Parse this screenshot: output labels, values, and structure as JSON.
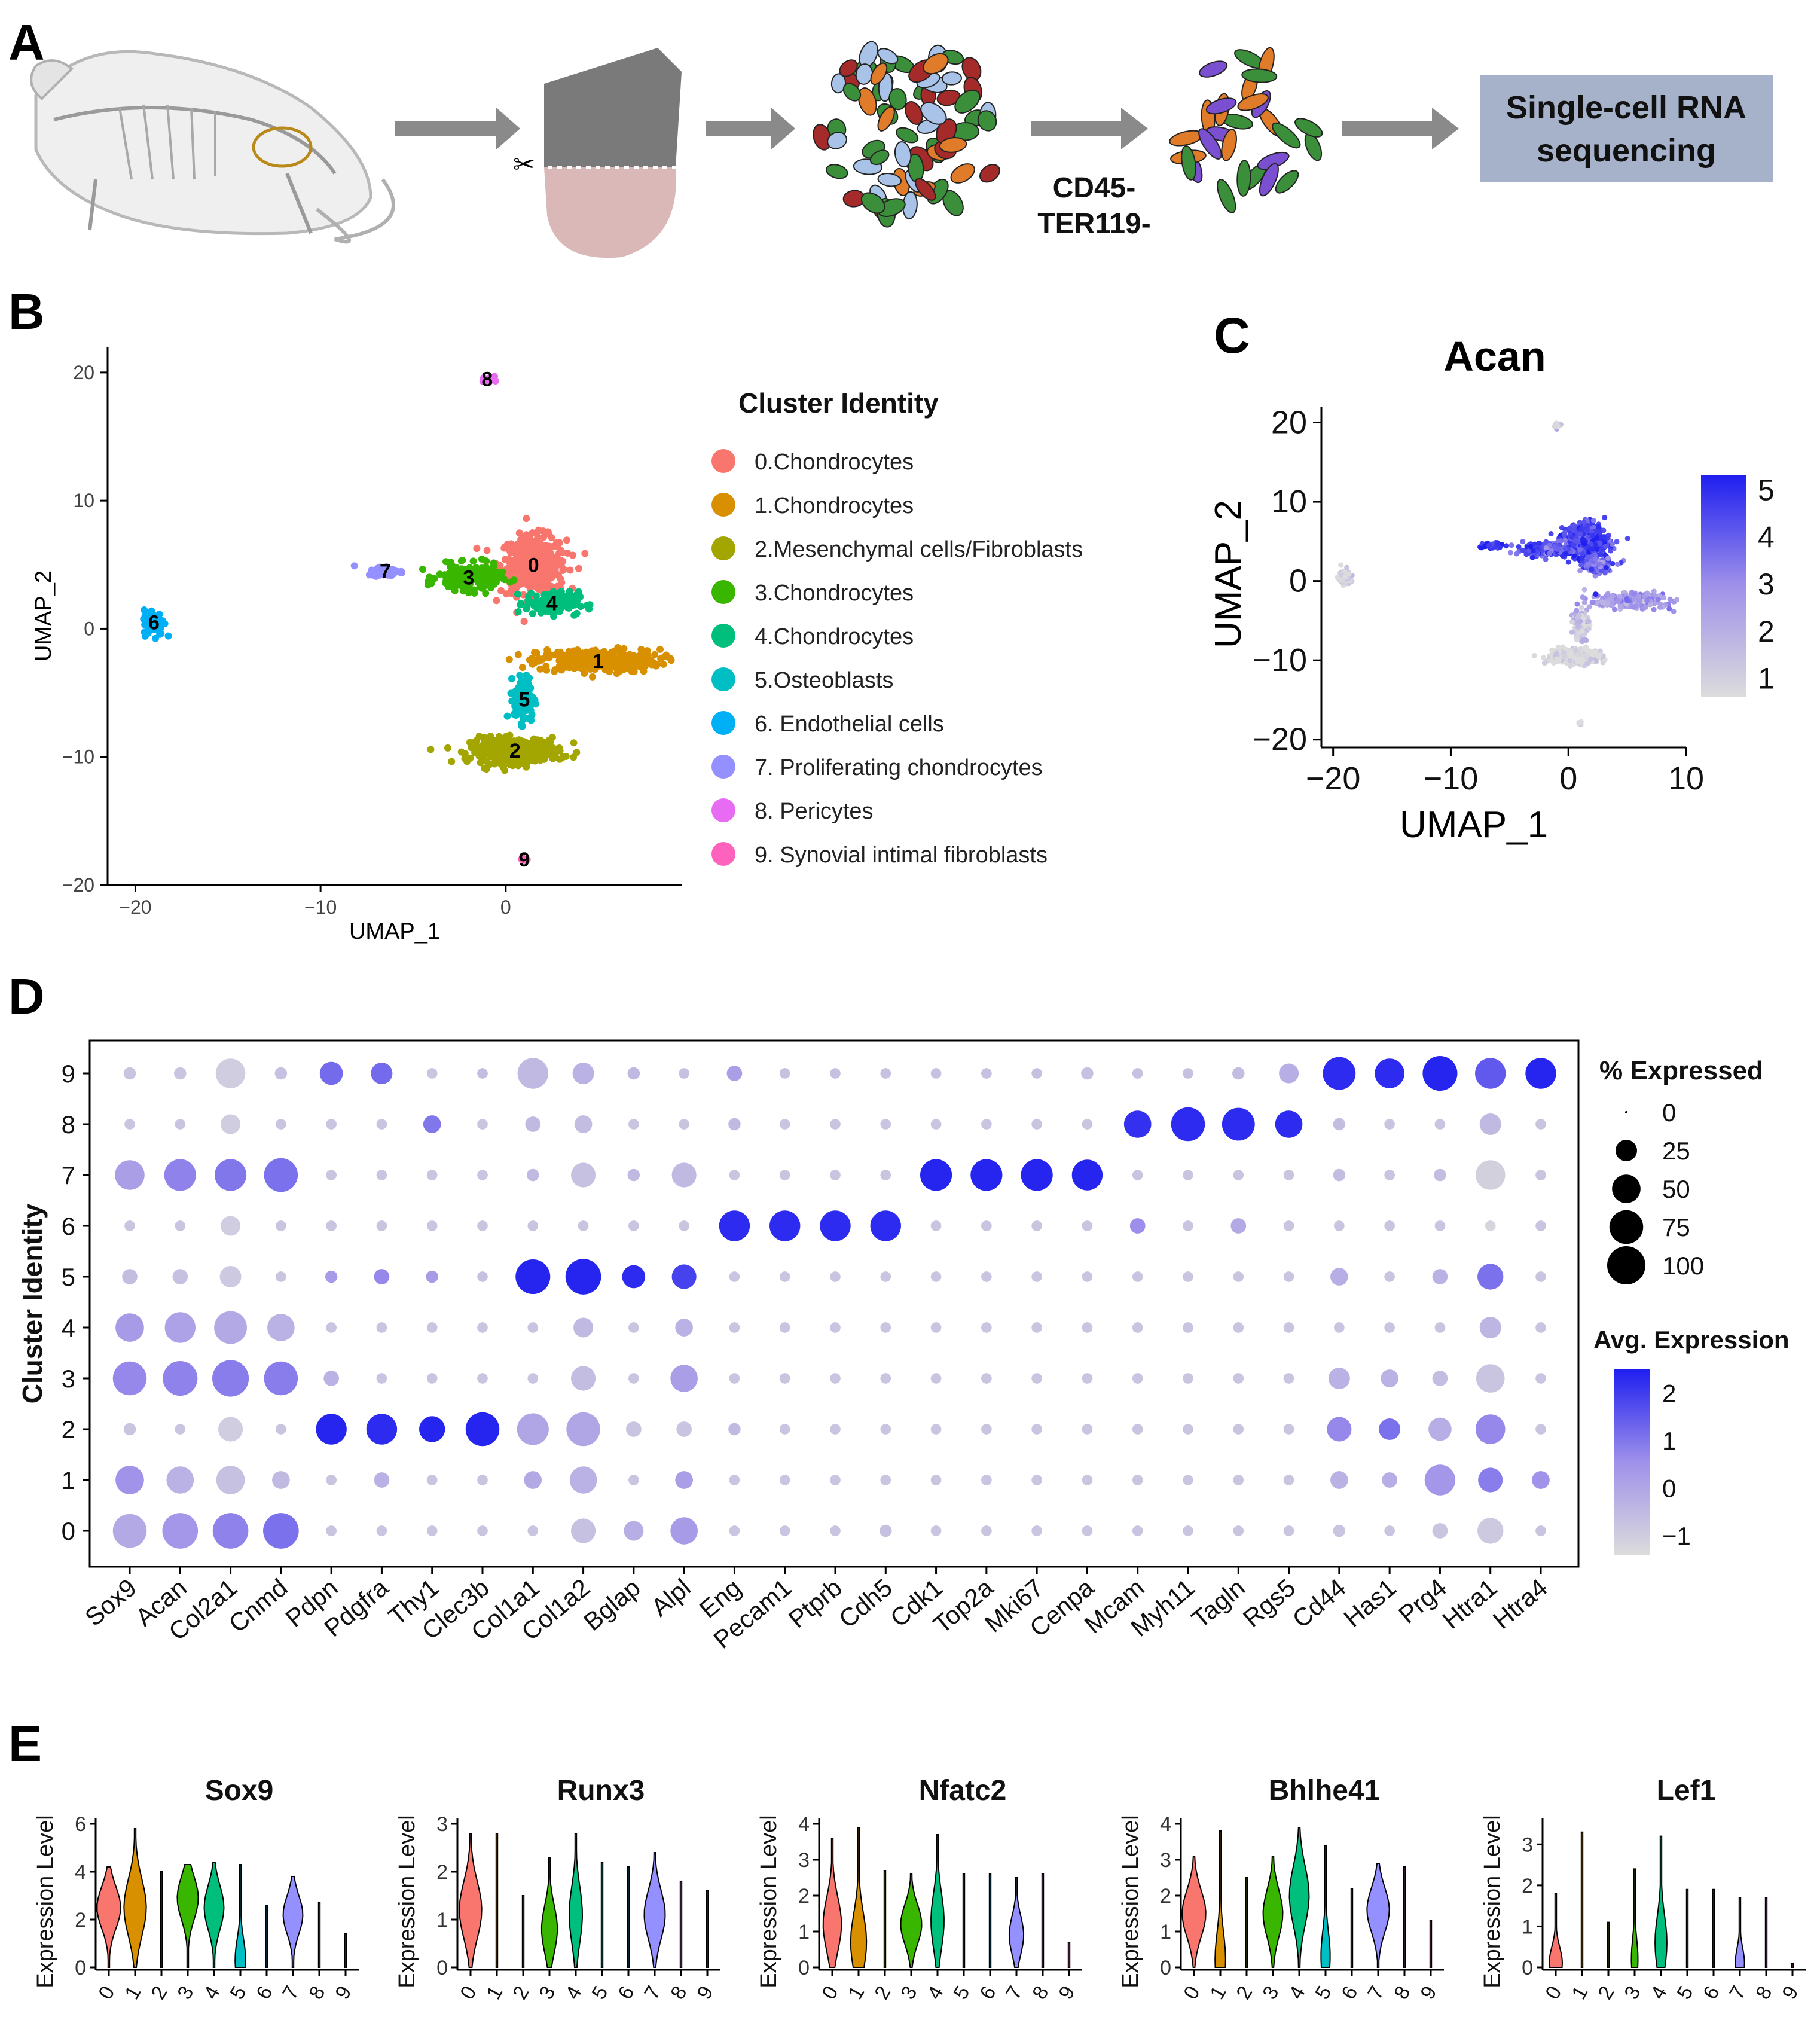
{
  "panels": {
    "a": "A",
    "b": "B",
    "c": "C",
    "d": "D",
    "e": "E"
  },
  "workflow": {
    "sort_label_1": "CD45-",
    "sort_label_2": "TER119-",
    "box_line_1": "Single-cell RNA",
    "box_line_2": "sequencing"
  },
  "umap": {
    "xlabel": "UMAP_1",
    "ylabel": "UMAP_2",
    "xticks": [
      "−20",
      "−10",
      "0"
    ],
    "yticks": [
      "20",
      "10",
      "0",
      "−10",
      "−20"
    ],
    "legend_title": "Cluster Identity",
    "clusters": [
      {
        "id": "0",
        "label": "0.Chondrocytes",
        "color": "#F8766D"
      },
      {
        "id": "1",
        "label": "1.Chondrocytes",
        "color": "#D89000"
      },
      {
        "id": "2",
        "label": "2.Mesenchymal cells/Fibroblasts",
        "color": "#A3A500"
      },
      {
        "id": "3",
        "label": "3.Chondrocytes",
        "color": "#39B600"
      },
      {
        "id": "4",
        "label": "4.Chondrocytes",
        "color": "#00BF7D"
      },
      {
        "id": "5",
        "label": "5.Osteoblasts",
        "color": "#00BFC4"
      },
      {
        "id": "6",
        "label": "6. Endothelial cells",
        "color": "#00B0F6"
      },
      {
        "id": "7",
        "label": "7. Proliferating chondrocytes",
        "color": "#9590FF"
      },
      {
        "id": "8",
        "label": "8. Pericytes",
        "color": "#E76BF3"
      },
      {
        "id": "9",
        "label": "9. Synovial intimal fibroblasts",
        "color": "#FF62BC"
      }
    ]
  },
  "acan": {
    "title": "Acan",
    "xlabel": "UMAP_1",
    "ylabel": "UMAP_2",
    "xticks": [
      "−20",
      "−10",
      "0",
      "10"
    ],
    "yticks": [
      "20",
      "10",
      "0",
      "−10",
      "−20"
    ],
    "colorbar_ticks": [
      "5",
      "4",
      "3",
      "2",
      "1"
    ]
  },
  "chart_data": [
    {
      "type": "scatter",
      "panel": "B",
      "xlabel": "UMAP_1",
      "ylabel": "UMAP_2",
      "xlim": [
        -21.5,
        9.5
      ],
      "ylim": [
        -20,
        22
      ],
      "cluster_centers": [
        {
          "cluster": "0",
          "x": 1.5,
          "y": 5
        },
        {
          "cluster": "1",
          "x": 5,
          "y": -2.5
        },
        {
          "cluster": "2",
          "x": 0.5,
          "y": -9.5
        },
        {
          "cluster": "3",
          "x": -2,
          "y": 4
        },
        {
          "cluster": "4",
          "x": 2.5,
          "y": 2
        },
        {
          "cluster": "5",
          "x": 1,
          "y": -5.5
        },
        {
          "cluster": "6",
          "x": -19,
          "y": 0.5
        },
        {
          "cluster": "7",
          "x": -6.5,
          "y": 4.5
        },
        {
          "cluster": "8",
          "x": -1,
          "y": 19.5
        },
        {
          "cluster": "9",
          "x": 1,
          "y": -18
        }
      ]
    },
    {
      "type": "scatter",
      "panel": "C",
      "title": "Acan",
      "xlabel": "UMAP_1",
      "ylabel": "UMAP_2",
      "xlim": [
        -21,
        10
      ],
      "ylim": [
        -21,
        22
      ],
      "colorbar_range": [
        0.6,
        5.3
      ]
    },
    {
      "type": "dotplot",
      "panel": "D",
      "ylabel": "Cluster Identity",
      "clusters": [
        "9",
        "8",
        "7",
        "6",
        "5",
        "4",
        "3",
        "2",
        "1",
        "0"
      ],
      "genes": [
        "Sox9",
        "Acan",
        "Col2a1",
        "Cnmd",
        "Pdpn",
        "Pdgfra",
        "Thy1",
        "Clec3b",
        "Col1a1",
        "Col1a2",
        "Bglap",
        "Alpl",
        "Eng",
        "Pecam1",
        "Ptprb",
        "Cdh5",
        "Cdk1",
        "Top2a",
        "Mki67",
        "Cenpa",
        "Mcam",
        "Myh11",
        "Tagln",
        "Rgs5",
        "Cd44",
        "Has1",
        "Prg4",
        "Htra1",
        "Htra4"
      ],
      "size_legend_title": "% Expressed",
      "size_legend": [
        "0",
        "25",
        "50",
        "75",
        "100"
      ],
      "color_legend_title": "Avg. Expression",
      "color_legend": [
        "2",
        "1",
        "0",
        "−1"
      ],
      "color_range": [
        -1.4,
        2.5
      ],
      "pct_expressed": [
        [
          5,
          5,
          55,
          5,
          30,
          25,
          3,
          3,
          60,
          25,
          5,
          3,
          10,
          3,
          3,
          3,
          3,
          3,
          3,
          5,
          3,
          3,
          5,
          20,
          70,
          55,
          80,
          60,
          60
        ],
        [
          3,
          3,
          20,
          3,
          3,
          3,
          15,
          3,
          10,
          15,
          3,
          3,
          5,
          3,
          3,
          3,
          3,
          3,
          3,
          3,
          45,
          75,
          70,
          45,
          5,
          3,
          3,
          25,
          3
        ],
        [
          55,
          65,
          65,
          75,
          3,
          3,
          3,
          3,
          5,
          35,
          5,
          35,
          3,
          3,
          3,
          3,
          65,
          65,
          65,
          60,
          3,
          3,
          3,
          3,
          5,
          3,
          5,
          55,
          3
        ],
        [
          3,
          3,
          20,
          3,
          3,
          3,
          3,
          3,
          3,
          3,
          3,
          3,
          60,
          60,
          60,
          60,
          3,
          3,
          3,
          3,
          10,
          3,
          10,
          3,
          3,
          3,
          3,
          3,
          3
        ],
        [
          10,
          10,
          25,
          3,
          5,
          10,
          5,
          3,
          80,
          85,
          30,
          35,
          3,
          3,
          3,
          3,
          3,
          3,
          3,
          3,
          3,
          3,
          3,
          3,
          15,
          3,
          10,
          40,
          3
        ],
        [
          50,
          60,
          70,
          45,
          3,
          3,
          3,
          3,
          3,
          20,
          3,
          15,
          3,
          3,
          3,
          3,
          3,
          3,
          3,
          3,
          3,
          3,
          3,
          3,
          3,
          3,
          3,
          25,
          3
        ],
        [
          75,
          80,
          90,
          75,
          10,
          3,
          3,
          3,
          3,
          35,
          3,
          45,
          3,
          3,
          3,
          3,
          3,
          3,
          3,
          3,
          3,
          3,
          3,
          3,
          25,
          15,
          10,
          50,
          3
        ],
        [
          5,
          3,
          35,
          3,
          60,
          60,
          40,
          75,
          65,
          75,
          10,
          10,
          5,
          3,
          3,
          3,
          3,
          3,
          3,
          3,
          3,
          3,
          3,
          3,
          35,
          25,
          30,
          55,
          3
        ],
        [
          50,
          45,
          50,
          15,
          3,
          10,
          3,
          3,
          15,
          45,
          3,
          15,
          3,
          3,
          3,
          3,
          3,
          3,
          3,
          3,
          3,
          3,
          3,
          3,
          15,
          10,
          60,
          35,
          15
        ],
        [
          75,
          85,
          85,
          85,
          3,
          3,
          3,
          3,
          3,
          35,
          20,
          45,
          3,
          3,
          3,
          5,
          3,
          3,
          3,
          3,
          3,
          3,
          3,
          3,
          5,
          3,
          10,
          40,
          3
        ]
      ],
      "avg_expression": [
        [
          -0.8,
          -0.8,
          -1,
          -0.7,
          1.2,
          1.2,
          -0.8,
          -0.6,
          -0.5,
          -0.3,
          -0.5,
          -0.7,
          0.2,
          -0.7,
          -0.7,
          -0.7,
          -0.7,
          -0.7,
          -0.7,
          -0.7,
          -0.7,
          -0.7,
          -0.6,
          -0.2,
          2.3,
          2.3,
          2.4,
          1.5,
          2.4
        ],
        [
          -0.8,
          -0.8,
          -1,
          -0.8,
          -0.8,
          -0.8,
          1,
          -0.8,
          -0.5,
          -0.6,
          -0.8,
          -0.8,
          -0.5,
          -0.8,
          -0.8,
          -0.8,
          -0.8,
          -0.8,
          -0.8,
          -0.8,
          2.2,
          2.3,
          2.3,
          2.3,
          -0.6,
          -0.8,
          -0.8,
          -0.5,
          -0.8
        ],
        [
          0.2,
          0.8,
          1,
          1.1,
          -0.8,
          -0.8,
          -0.8,
          -0.8,
          -0.5,
          -0.7,
          -0.5,
          -0.5,
          -0.8,
          -0.8,
          -0.8,
          -0.8,
          2.4,
          2.4,
          2.4,
          2.4,
          -0.8,
          -0.8,
          -0.8,
          -0.8,
          -0.6,
          -0.8,
          -0.6,
          -1.1,
          -0.8
        ],
        [
          -0.8,
          -0.8,
          -1,
          -0.8,
          -0.8,
          -0.8,
          -0.8,
          -0.8,
          -0.8,
          -0.8,
          -0.8,
          -0.8,
          2.3,
          2.3,
          2.3,
          2.3,
          -0.8,
          -0.8,
          -0.8,
          -0.8,
          0.6,
          -0.8,
          -0.1,
          -0.8,
          -0.8,
          -0.8,
          -0.8,
          -1.2,
          -0.8
        ],
        [
          -0.6,
          -0.7,
          -0.9,
          -0.8,
          0.3,
          0.7,
          0.3,
          -0.7,
          2.4,
          2.4,
          2.3,
          1.9,
          -0.8,
          -0.8,
          -0.8,
          -0.8,
          -0.8,
          -0.8,
          -0.8,
          -0.8,
          -0.8,
          -0.8,
          -0.8,
          -0.8,
          -0.2,
          -0.8,
          -0.3,
          1.1,
          -0.8
        ],
        [
          0.3,
          0.1,
          -0.1,
          -0.3,
          -0.8,
          -0.8,
          -0.8,
          -0.8,
          -0.8,
          -0.5,
          -0.8,
          -0.3,
          -0.8,
          -0.8,
          -0.8,
          -0.8,
          -0.8,
          -0.8,
          -0.8,
          -0.8,
          -0.8,
          -0.8,
          -0.8,
          -0.8,
          -0.8,
          -0.8,
          -0.8,
          -0.4,
          -0.8
        ],
        [
          0.7,
          0.8,
          0.9,
          0.9,
          -0.3,
          -0.8,
          -0.8,
          -0.8,
          -0.8,
          -0.6,
          -0.8,
          0.2,
          -0.8,
          -0.8,
          -0.8,
          -0.8,
          -0.8,
          -0.8,
          -0.8,
          -0.8,
          -0.8,
          -0.8,
          -0.8,
          -0.8,
          -0.3,
          -0.3,
          -0.6,
          -0.8,
          -0.8
        ],
        [
          -0.8,
          -0.8,
          -1,
          -0.8,
          2.4,
          2.3,
          2.4,
          2.4,
          0,
          0,
          -0.8,
          -0.8,
          -0.5,
          -0.8,
          -0.8,
          -0.8,
          -0.8,
          -0.8,
          -0.8,
          -0.8,
          -0.8,
          -0.8,
          -0.8,
          -0.8,
          0.7,
          1.1,
          -0.2,
          0.7,
          -0.8
        ],
        [
          0.5,
          -0.3,
          -0.7,
          -0.5,
          -0.8,
          -0.3,
          -0.8,
          -0.8,
          -0.1,
          -0.3,
          -0.8,
          0.2,
          -0.8,
          -0.8,
          -0.8,
          -0.8,
          -0.8,
          -0.8,
          -0.8,
          -0.8,
          -0.8,
          -0.8,
          -0.8,
          -0.8,
          -0.3,
          -0.2,
          0.4,
          0.9,
          0.5
        ],
        [
          -0.1,
          0.4,
          0.8,
          1.1,
          -0.8,
          -0.8,
          -0.8,
          -0.8,
          -0.8,
          -0.7,
          -0.2,
          0.3,
          -0.8,
          -0.8,
          -0.8,
          -0.7,
          -0.8,
          -0.8,
          -0.8,
          -0.8,
          -0.8,
          -0.8,
          -0.8,
          -0.8,
          -0.8,
          -0.8,
          -0.8,
          -0.9,
          -0.8
        ]
      ]
    },
    {
      "type": "violin",
      "panel": "E",
      "ylabel": "Expression Level",
      "categories": [
        "0",
        "1",
        "2",
        "3",
        "4",
        "5",
        "6",
        "7",
        "8",
        "9"
      ],
      "series": [
        {
          "name": "Sox9",
          "ymax": 6,
          "yticks": [
            "0",
            "2",
            "4",
            "6"
          ],
          "max": [
            4.2,
            5.8,
            4,
            4.3,
            4.4,
            4.3,
            2.6,
            3.8,
            2.7,
            1.4
          ],
          "median": [
            2.5,
            2.5,
            0,
            2.9,
            2.5,
            0.3,
            0,
            2.2,
            0,
            0
          ],
          "width": [
            0.9,
            0.85,
            0.05,
            0.8,
            0.75,
            0.4,
            0.05,
            0.75,
            0.05,
            0.05
          ]
        },
        {
          "name": "Runx3",
          "ymax": 3,
          "yticks": [
            "0",
            "1",
            "2",
            "3"
          ],
          "max": [
            2.8,
            2.8,
            1.5,
            2.3,
            2.8,
            2.2,
            2.1,
            2.4,
            1.8,
            1.6
          ],
          "median": [
            1.2,
            0,
            0,
            0.8,
            1.1,
            0,
            0,
            1.1,
            0,
            0
          ],
          "width": [
            0.85,
            0.05,
            0.05,
            0.6,
            0.5,
            0.05,
            0.05,
            0.8,
            0.05,
            0.05
          ]
        },
        {
          "name": "Nfatc2",
          "ymax": 4,
          "yticks": [
            "0",
            "1",
            "2",
            "3",
            "4"
          ],
          "max": [
            3.6,
            3.9,
            2.7,
            2.6,
            3.7,
            2.6,
            2.6,
            2.5,
            2.6,
            0.7
          ],
          "median": [
            1.2,
            0.7,
            0,
            1.2,
            1.3,
            0,
            0,
            0.9,
            0,
            0
          ],
          "width": [
            0.7,
            0.6,
            0.05,
            0.8,
            0.5,
            0.05,
            0.05,
            0.55,
            0.05,
            0.05
          ]
        },
        {
          "name": "Bhlhe41",
          "ymax": 4,
          "yticks": [
            "0",
            "1",
            "2",
            "3",
            "4"
          ],
          "max": [
            3.1,
            3.8,
            2.5,
            3.1,
            3.9,
            3.4,
            2.2,
            2.9,
            2.8,
            1.3
          ],
          "median": [
            1.5,
            0.2,
            0,
            1.5,
            2,
            0.3,
            0,
            1.6,
            0,
            0
          ],
          "width": [
            0.9,
            0.4,
            0.05,
            0.75,
            0.75,
            0.35,
            0.05,
            0.85,
            0.05,
            0.05
          ]
        },
        {
          "name": "Lef1",
          "ymax": 3.5,
          "yticks": [
            "0",
            "1",
            "2",
            "3"
          ],
          "max": [
            1.8,
            3.3,
            1.1,
            2.4,
            3.2,
            1.9,
            1.9,
            1.7,
            1.7,
            0.1
          ],
          "median": [
            0.1,
            0,
            0,
            0.2,
            0.6,
            0,
            0,
            0.1,
            0,
            0
          ],
          "width": [
            0.5,
            0.05,
            0.05,
            0.25,
            0.45,
            0.05,
            0.05,
            0.35,
            0.05,
            0.05
          ]
        }
      ]
    }
  ]
}
